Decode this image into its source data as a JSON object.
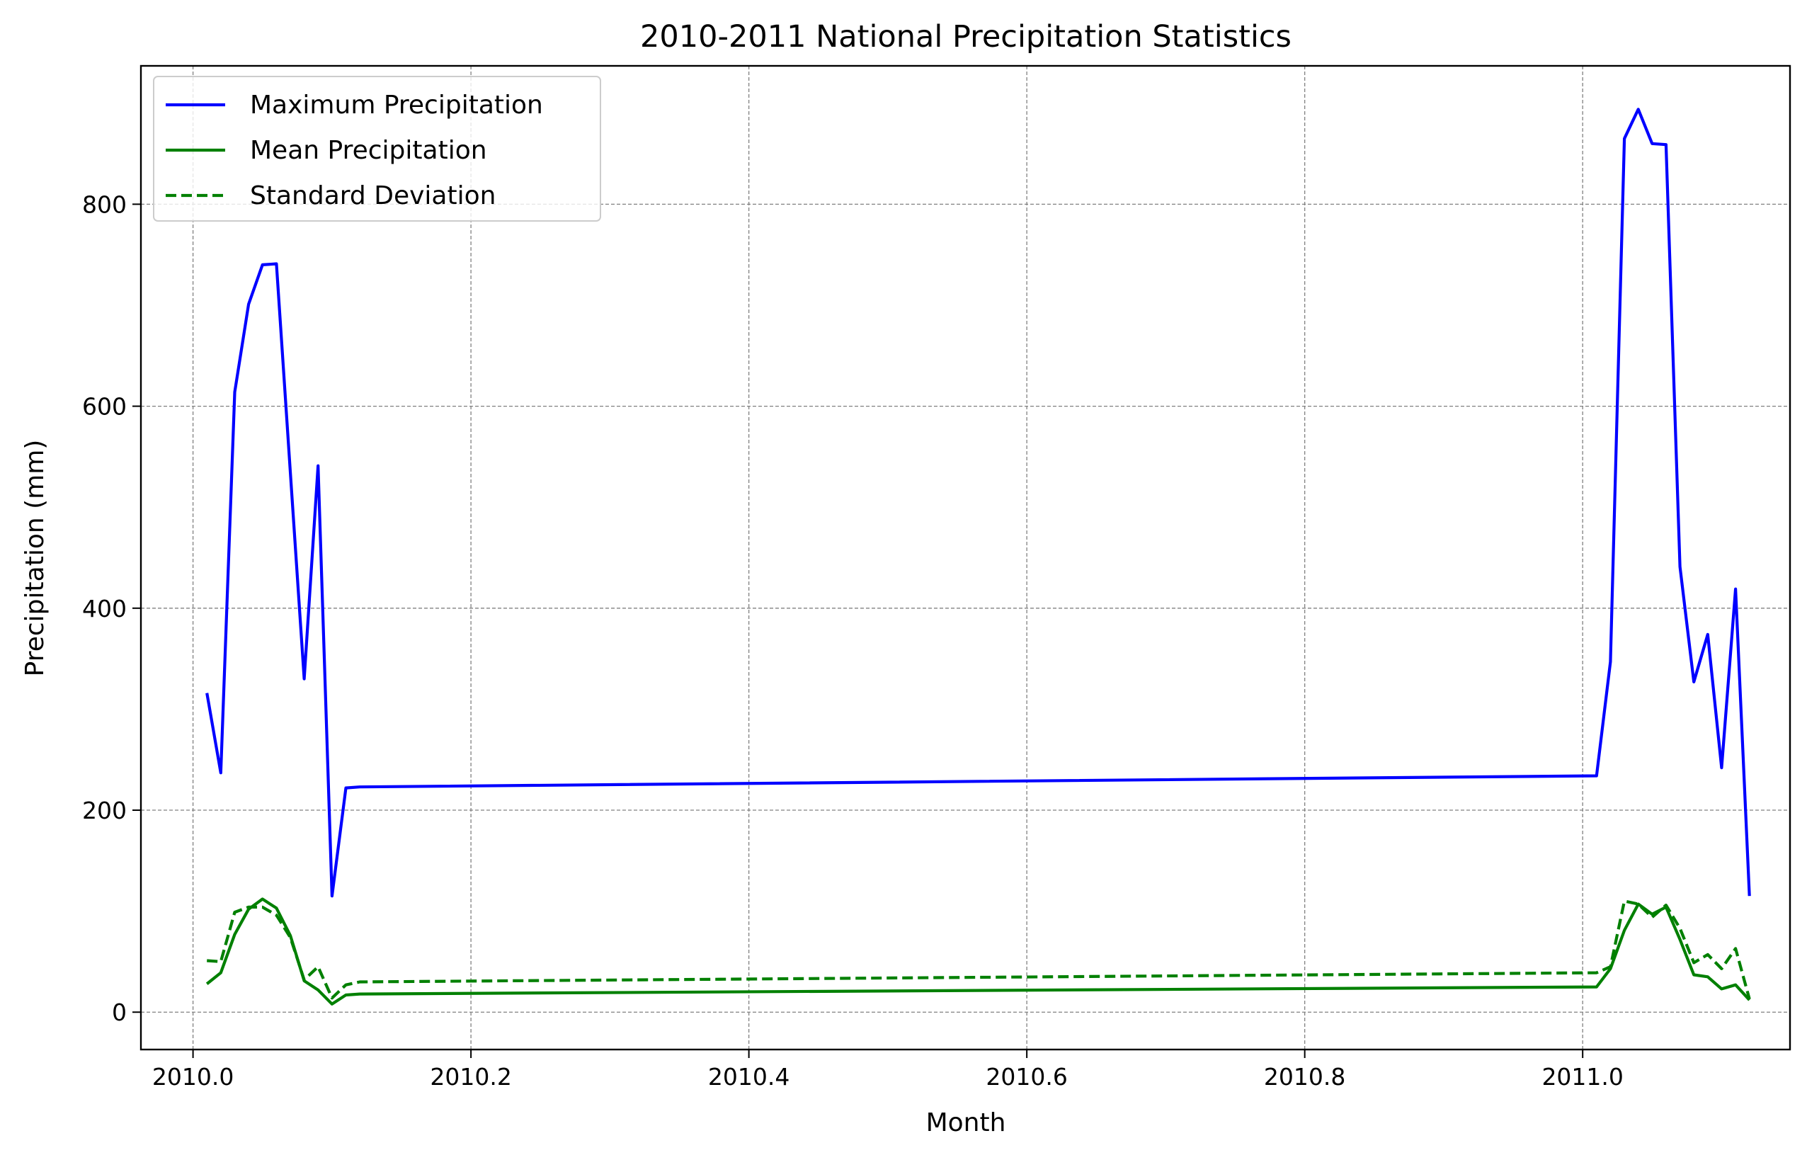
{
  "chart_data": {
    "type": "line",
    "title": "2010-2011 National Precipitation Statistics",
    "xlabel": "Month",
    "ylabel": "Precipitation (mm)",
    "xlim": [
      2009.9625,
      2011.1492
    ],
    "ylim": [
      -37,
      937
    ],
    "xticks": [
      2010.0,
      2010.2,
      2010.4,
      2010.6,
      2010.8,
      2011.0
    ],
    "xtick_labels": [
      "2010.0",
      "2010.2",
      "2010.4",
      "2010.6",
      "2010.8",
      "2011.0"
    ],
    "yticks": [
      0,
      200,
      400,
      600,
      800
    ],
    "ytick_labels": [
      "0",
      "200",
      "400",
      "600",
      "800"
    ],
    "grid": true,
    "legend_position": "top-left",
    "colors": {
      "max": "#0000ff",
      "mean": "#008000",
      "std": "#008000"
    },
    "x": [
      2010.01,
      2010.02,
      2010.03,
      2010.04,
      2010.05,
      2010.06,
      2010.07,
      2010.08,
      2010.09,
      2010.1,
      2010.11,
      2010.12,
      2011.01,
      2011.02,
      2011.03,
      2011.04,
      2011.05,
      2011.06,
      2011.07,
      2011.08,
      2011.09,
      2011.1,
      2011.11,
      2011.12
    ],
    "series": [
      {
        "name": "Maximum Precipitation",
        "style": "solid",
        "values": [
          316,
          237,
          614,
          701,
          740,
          741,
          535,
          330,
          541,
          115,
          222,
          223,
          234,
          347,
          865,
          894,
          860,
          859,
          441,
          327,
          374,
          242,
          419,
          115
        ]
      },
      {
        "name": "Mean Precipitation",
        "style": "solid",
        "values": [
          28,
          39,
          77,
          102,
          112,
          103,
          76,
          31,
          22,
          8,
          17,
          18,
          25,
          43,
          81,
          107,
          97,
          104,
          72,
          37,
          35,
          23,
          27,
          12
        ]
      },
      {
        "name": "Standard Deviation",
        "style": "dashed",
        "values": [
          51,
          50,
          99,
          104,
          104,
          96,
          74,
          32,
          45,
          14,
          27,
          30,
          39,
          45,
          110,
          107,
          94,
          106,
          83,
          49,
          57,
          43,
          63,
          13
        ]
      }
    ]
  }
}
